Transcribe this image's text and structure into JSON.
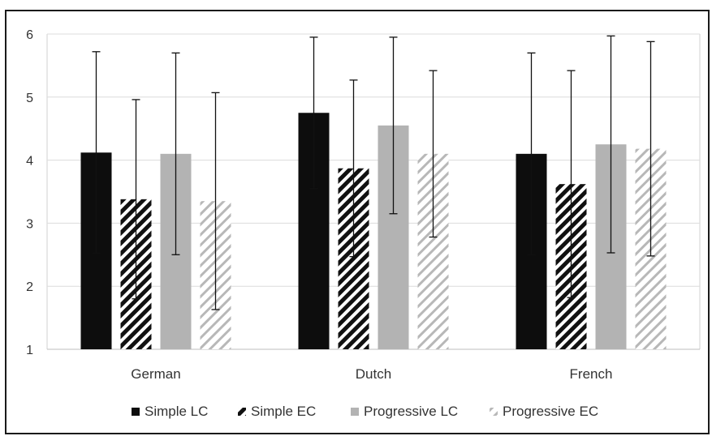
{
  "chart_data": {
    "type": "bar",
    "title": "",
    "xlabel": "",
    "ylabel": "",
    "ylim": [
      1,
      6
    ],
    "yticks": [
      1,
      2,
      3,
      4,
      5,
      6
    ],
    "categories": [
      "German",
      "Dutch",
      "French"
    ],
    "grid": true,
    "legend_position": "bottom",
    "series": [
      {
        "name": "Simple LC",
        "values": [
          4.12,
          4.75,
          4.1
        ],
        "error": [
          1.6,
          1.2,
          1.6
        ],
        "color": "#0d0d0d",
        "pattern": "solid"
      },
      {
        "name": "Simple EC",
        "values": [
          3.38,
          3.87,
          3.62
        ],
        "error": [
          1.58,
          1.4,
          1.8
        ],
        "color": "#111111",
        "pattern": "hatch-dark"
      },
      {
        "name": "Progressive LC",
        "values": [
          4.1,
          4.55,
          4.25
        ],
        "error": [
          1.6,
          1.4,
          1.72
        ],
        "color": "#b3b3b3",
        "pattern": "solid"
      },
      {
        "name": "Progressive EC",
        "values": [
          3.35,
          4.1,
          4.18
        ],
        "error": [
          1.72,
          1.32,
          1.7
        ],
        "color": "#b8b8b8",
        "pattern": "hatch-light"
      }
    ]
  }
}
